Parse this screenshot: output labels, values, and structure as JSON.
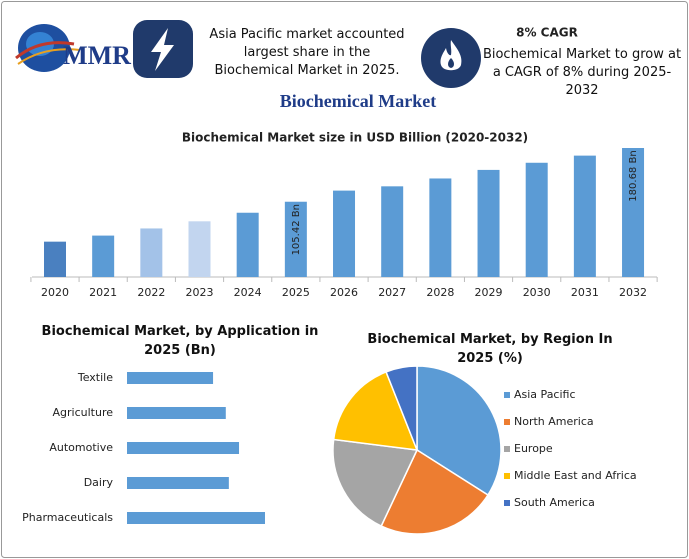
{
  "header": {
    "logo": "MMR",
    "note1": "Asia Pacific market accounted largest share in the Biochemical Market in 2025.",
    "cagr_title": "8% CAGR",
    "note2": "Biochemical Market to grow at a CAGR of 8% during 2025-2032",
    "title": "Biochemical Market"
  },
  "chart_data": [
    {
      "type": "bar",
      "title": "Biochemical Market size in USD Billion (2020-2032)",
      "categories": [
        "2020",
        "2021",
        "2022",
        "2023",
        "2024",
        "2025",
        "2026",
        "2027",
        "2028",
        "2029",
        "2030",
        "2031",
        "2032"
      ],
      "values": [
        49.5,
        58,
        68,
        78,
        90,
        105.42,
        121,
        127,
        138,
        150,
        160,
        170,
        180.68
      ],
      "value_labels": [
        null,
        null,
        null,
        null,
        null,
        "105.42 Bn",
        null,
        null,
        null,
        null,
        null,
        null,
        "180.68 Bn"
      ],
      "colors": [
        "#4a80c0",
        "#5b9bd5",
        "#a3c2e8",
        "#c2d5ef",
        "#5b9bd5",
        "#5b9bd5",
        "#5b9bd5",
        "#5b9bd5",
        "#5b9bd5",
        "#5b9bd5",
        "#5b9bd5",
        "#5b9bd5",
        "#5b9bd5"
      ]
    },
    {
      "type": "barh",
      "title": "Biochemical Market, by Application in 2025 (Bn)",
      "categories": [
        "Textile",
        "Agriculture",
        "Automotive",
        "Dairy",
        "Pharmaceuticals"
      ],
      "values": [
        16.9,
        19.4,
        22.0,
        20.0,
        27.1
      ],
      "color": "#5b9bd5"
    },
    {
      "type": "pie",
      "title": "Biochemical Market, by Region In 2025 (%)",
      "categories": [
        "Asia Pacific",
        "North America",
        "Europe",
        "Middle East and Africa",
        "South America"
      ],
      "values": [
        34,
        23,
        20,
        17,
        6
      ],
      "colors": [
        "#5b9bd5",
        "#ed7d31",
        "#a5a5a5",
        "#ffc000",
        "#4472c4"
      ]
    }
  ]
}
